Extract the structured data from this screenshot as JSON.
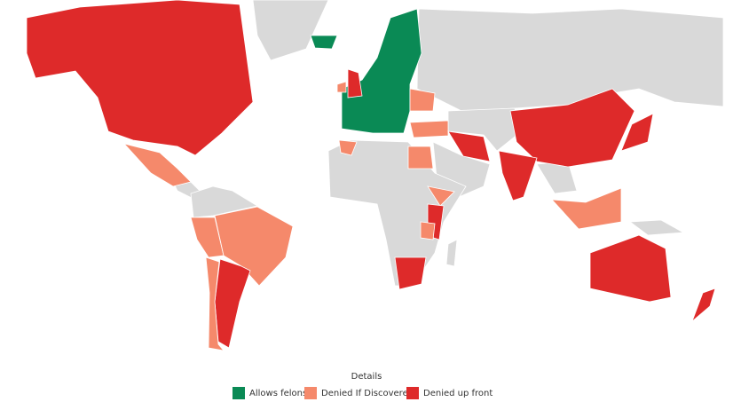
{
  "legend": {
    "title": "Details",
    "items": [
      {
        "label": "Allows felons",
        "color": "#0a8a55"
      },
      {
        "label": "Denied If Discovered",
        "color": "#f5896b"
      },
      {
        "label": "Denied up front",
        "color": "#de2a2a"
      }
    ]
  },
  "land_color": "#d9d9d9"
}
